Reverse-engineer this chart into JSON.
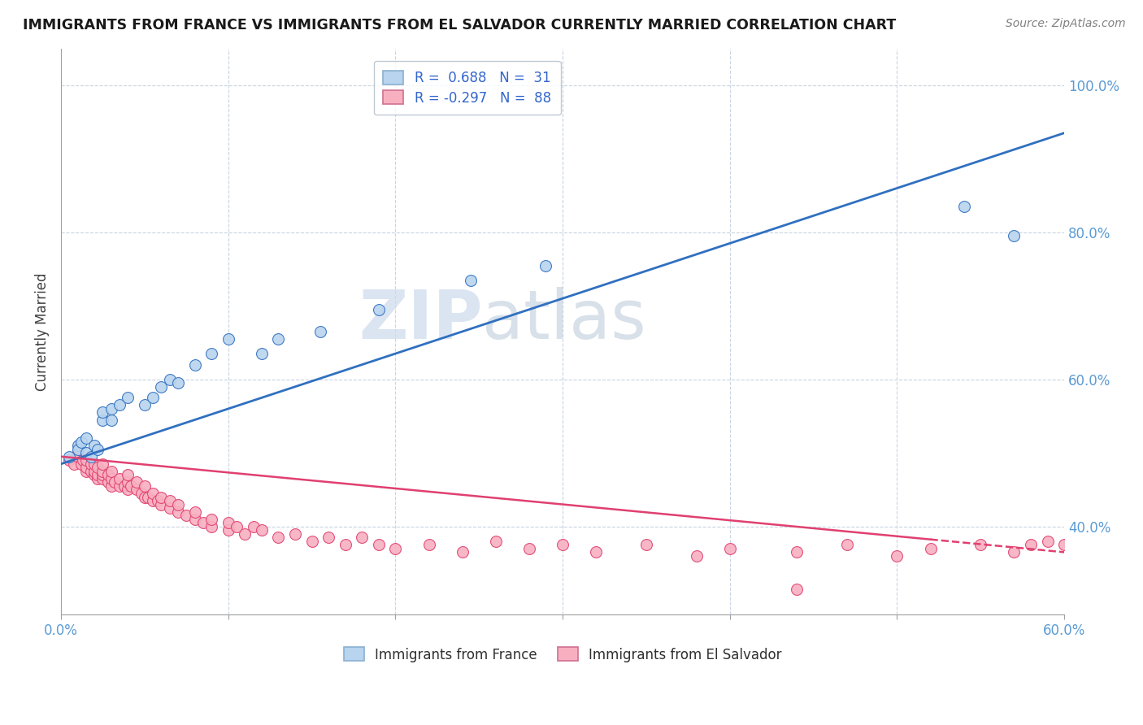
{
  "title": "IMMIGRANTS FROM FRANCE VS IMMIGRANTS FROM EL SALVADOR CURRENTLY MARRIED CORRELATION CHART",
  "source": "Source: ZipAtlas.com",
  "ylabel": "Currently Married",
  "xlim": [
    0.0,
    0.6
  ],
  "ylim": [
    0.28,
    1.05
  ],
  "x_tick_positions": [
    0.0,
    0.1,
    0.2,
    0.3,
    0.4,
    0.5,
    0.6
  ],
  "x_tick_labels": [
    "0.0%",
    "",
    "",
    "",
    "",
    "",
    "60.0%"
  ],
  "y_ticks_right": [
    0.4,
    0.6,
    0.8,
    1.0
  ],
  "y_tick_labels_right": [
    "40.0%",
    "60.0%",
    "80.0%",
    "100.0%"
  ],
  "france_color": "#b8d4ee",
  "salvador_color": "#f8b0c0",
  "france_line_color": "#3070c0",
  "salvador_line_color": "#e04070",
  "watermark_color": "#d0dff0",
  "legend_france_label": "R =  0.688   N =  31",
  "legend_salvador_label": "R = -0.297   N =  88",
  "france_trend_x0": 0.0,
  "france_trend_y0": 0.485,
  "france_trend_x1": 0.6,
  "france_trend_y1": 0.935,
  "salvador_trend_x0": 0.0,
  "salvador_trend_y0": 0.495,
  "salvador_trend_x1": 0.6,
  "salvador_trend_y1": 0.365,
  "france_x": [
    0.005,
    0.01,
    0.01,
    0.012,
    0.015,
    0.015,
    0.018,
    0.02,
    0.022,
    0.025,
    0.025,
    0.03,
    0.03,
    0.035,
    0.04,
    0.05,
    0.055,
    0.06,
    0.065,
    0.07,
    0.08,
    0.09,
    0.1,
    0.12,
    0.13,
    0.155,
    0.19,
    0.245,
    0.29,
    0.54,
    0.57
  ],
  "france_y": [
    0.495,
    0.51,
    0.505,
    0.515,
    0.5,
    0.52,
    0.495,
    0.51,
    0.505,
    0.545,
    0.555,
    0.545,
    0.56,
    0.565,
    0.575,
    0.565,
    0.575,
    0.59,
    0.6,
    0.595,
    0.62,
    0.635,
    0.655,
    0.635,
    0.655,
    0.665,
    0.695,
    0.735,
    0.755,
    0.835,
    0.795
  ],
  "salvador_x": [
    0.005,
    0.008,
    0.01,
    0.01,
    0.012,
    0.013,
    0.015,
    0.015,
    0.015,
    0.018,
    0.018,
    0.02,
    0.02,
    0.02,
    0.022,
    0.022,
    0.022,
    0.025,
    0.025,
    0.025,
    0.025,
    0.028,
    0.028,
    0.03,
    0.03,
    0.03,
    0.032,
    0.035,
    0.035,
    0.038,
    0.04,
    0.04,
    0.04,
    0.042,
    0.045,
    0.045,
    0.048,
    0.05,
    0.05,
    0.052,
    0.055,
    0.055,
    0.058,
    0.06,
    0.06,
    0.065,
    0.065,
    0.07,
    0.07,
    0.075,
    0.08,
    0.08,
    0.085,
    0.09,
    0.09,
    0.1,
    0.1,
    0.105,
    0.11,
    0.115,
    0.12,
    0.13,
    0.14,
    0.15,
    0.16,
    0.17,
    0.18,
    0.19,
    0.2,
    0.22,
    0.24,
    0.26,
    0.28,
    0.3,
    0.32,
    0.35,
    0.38,
    0.4,
    0.44,
    0.47,
    0.5,
    0.52,
    0.55,
    0.57,
    0.58,
    0.59,
    0.6,
    0.44
  ],
  "salvador_y": [
    0.49,
    0.485,
    0.5,
    0.495,
    0.485,
    0.49,
    0.475,
    0.48,
    0.49,
    0.475,
    0.485,
    0.47,
    0.475,
    0.485,
    0.465,
    0.47,
    0.48,
    0.465,
    0.47,
    0.475,
    0.485,
    0.46,
    0.47,
    0.455,
    0.465,
    0.475,
    0.46,
    0.455,
    0.465,
    0.455,
    0.45,
    0.46,
    0.47,
    0.455,
    0.45,
    0.46,
    0.445,
    0.44,
    0.455,
    0.44,
    0.435,
    0.445,
    0.435,
    0.43,
    0.44,
    0.425,
    0.435,
    0.42,
    0.43,
    0.415,
    0.41,
    0.42,
    0.405,
    0.4,
    0.41,
    0.395,
    0.405,
    0.4,
    0.39,
    0.4,
    0.395,
    0.385,
    0.39,
    0.38,
    0.385,
    0.375,
    0.385,
    0.375,
    0.37,
    0.375,
    0.365,
    0.38,
    0.37,
    0.375,
    0.365,
    0.375,
    0.36,
    0.37,
    0.365,
    0.375,
    0.36,
    0.37,
    0.375,
    0.365,
    0.375,
    0.38,
    0.375,
    0.315
  ]
}
